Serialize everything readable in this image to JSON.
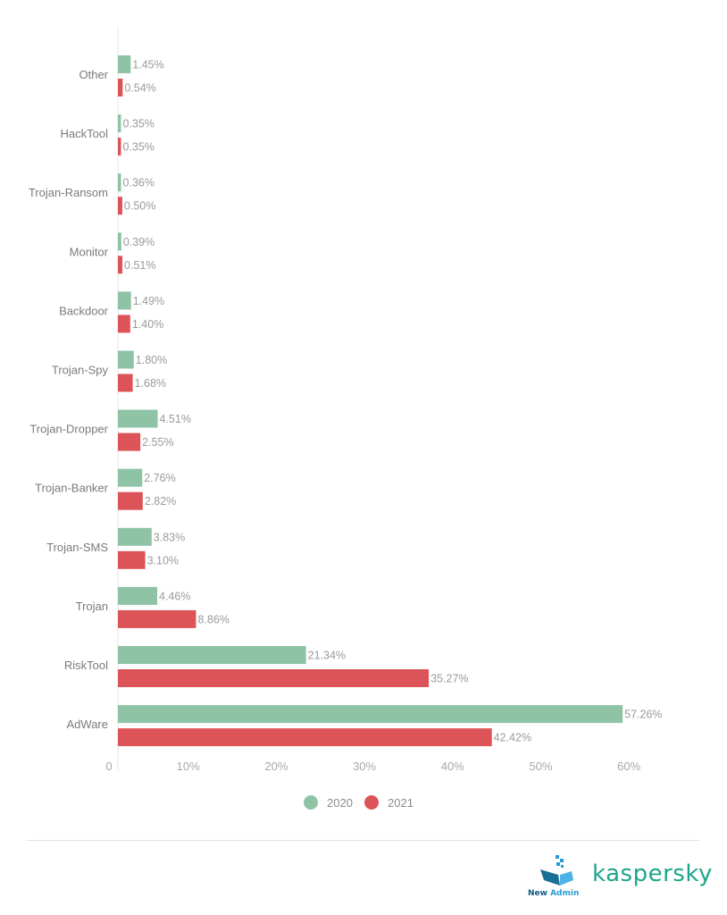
{
  "chart_data": {
    "type": "bar",
    "orientation": "horizontal",
    "categories": [
      "Other",
      "HackTool",
      "Trojan-Ransom",
      "Monitor",
      "Backdoor",
      "Trojan-Spy",
      "Trojan-Dropper",
      "Trojan-Banker",
      "Trojan-SMS",
      "Trojan",
      "RiskTool",
      "AdWare"
    ],
    "series": [
      {
        "name": "2020",
        "color": "#8fc3a5",
        "values": [
          1.45,
          0.35,
          0.36,
          0.39,
          1.49,
          1.8,
          4.51,
          2.76,
          3.83,
          4.46,
          21.34,
          57.26
        ],
        "labels": [
          "1.45%",
          "0.35%",
          "0.36%",
          "0.39%",
          "1.49%",
          "1.80%",
          "4.51%",
          "2.76%",
          "3.83%",
          "4.46%",
          "21.34%",
          "57.26%"
        ]
      },
      {
        "name": "2021",
        "color": "#dd5458",
        "values": [
          0.54,
          0.35,
          0.5,
          0.51,
          1.4,
          1.68,
          2.55,
          2.82,
          3.1,
          8.86,
          35.27,
          42.42
        ],
        "labels": [
          "0.54%",
          "0.35%",
          "0.50%",
          "0.51%",
          "1.40%",
          "1.68%",
          "2.55%",
          "2.82%",
          "3.10%",
          "8.86%",
          "35.27%",
          "42.42%"
        ]
      }
    ],
    "xlim": [
      0,
      60
    ],
    "xticks": [
      0,
      10,
      20,
      30,
      40,
      50,
      60
    ],
    "xtick_labels": [
      "0",
      "10%",
      "20%",
      "30%",
      "40%",
      "50%",
      "60%"
    ],
    "grid": false,
    "legend_position": "bottom"
  },
  "logos": {
    "left": "New Admin",
    "right": "kaspersky"
  }
}
